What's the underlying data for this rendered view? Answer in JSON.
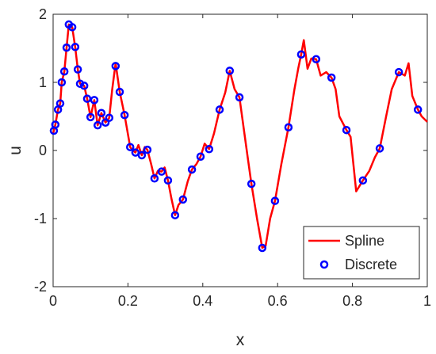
{
  "chart_data": {
    "type": "line",
    "xlabel": "x",
    "ylabel": "u",
    "xlim": [
      0,
      1
    ],
    "ylim": [
      -2,
      2
    ],
    "xticks": [
      0,
      0.2,
      0.4,
      0.6,
      0.8,
      1
    ],
    "yticks": [
      -2,
      -1,
      0,
      1,
      2
    ],
    "legend": "southeast",
    "series": [
      {
        "name": "Spline",
        "color": "#ff0000",
        "style": "line",
        "x": [
          0,
          0.002,
          0.006,
          0.013,
          0.019,
          0.023,
          0.03,
          0.036,
          0.042,
          0.051,
          0.059,
          0.066,
          0.072,
          0.083,
          0.091,
          0.1,
          0.11,
          0.119,
          0.129,
          0.14,
          0.15,
          0.158,
          0.167,
          0.178,
          0.191,
          0.206,
          0.213,
          0.22,
          0.228,
          0.237,
          0.245,
          0.252,
          0.262,
          0.271,
          0.28,
          0.29,
          0.298,
          0.307,
          0.316,
          0.326,
          0.335,
          0.347,
          0.36,
          0.371,
          0.383,
          0.394,
          0.405,
          0.417,
          0.43,
          0.445,
          0.46,
          0.472,
          0.485,
          0.498,
          0.51,
          0.52,
          0.53,
          0.545,
          0.559,
          0.568,
          0.58,
          0.593,
          0.61,
          0.629,
          0.645,
          0.655,
          0.663,
          0.67,
          0.68,
          0.69,
          0.703,
          0.715,
          0.73,
          0.744,
          0.755,
          0.765,
          0.784,
          0.795,
          0.81,
          0.828,
          0.845,
          0.86,
          0.873,
          0.89,
          0.905,
          0.924,
          0.94,
          0.95,
          0.96,
          0.975,
          0.985,
          1.0
        ],
        "values": [
          0.25,
          0.29,
          0.38,
          0.6,
          0.69,
          1.0,
          1.16,
          1.51,
          1.85,
          1.81,
          1.52,
          1.19,
          0.98,
          0.95,
          0.76,
          0.49,
          0.74,
          0.37,
          0.55,
          0.41,
          0.48,
          0.9,
          1.28,
          0.86,
          0.52,
          0.05,
          0.0,
          -0.03,
          0.08,
          -0.07,
          0.05,
          0.01,
          -0.2,
          -0.41,
          -0.3,
          -0.31,
          -0.25,
          -0.44,
          -0.7,
          -0.95,
          -0.8,
          -0.72,
          -0.45,
          -0.28,
          -0.2,
          -0.09,
          0.1,
          0.02,
          0.25,
          0.6,
          0.85,
          1.17,
          0.9,
          0.78,
          0.3,
          -0.1,
          -0.49,
          -1.0,
          -1.43,
          -1.4,
          -1.0,
          -0.74,
          -0.2,
          0.34,
          0.9,
          1.2,
          1.41,
          1.62,
          1.2,
          1.35,
          1.34,
          1.1,
          1.15,
          1.07,
          0.9,
          0.5,
          0.3,
          0.2,
          -0.6,
          -0.44,
          -0.3,
          -0.1,
          0.03,
          0.5,
          0.9,
          1.15,
          1.1,
          1.28,
          0.8,
          0.6,
          0.5,
          0.42
        ]
      },
      {
        "name": "Discrete",
        "color": "#0000ff",
        "style": "marker",
        "x": [
          0.002,
          0.006,
          0.013,
          0.019,
          0.023,
          0.03,
          0.036,
          0.042,
          0.051,
          0.059,
          0.066,
          0.072,
          0.083,
          0.091,
          0.1,
          0.11,
          0.119,
          0.129,
          0.14,
          0.15,
          0.167,
          0.178,
          0.191,
          0.206,
          0.22,
          0.237,
          0.252,
          0.271,
          0.29,
          0.307,
          0.326,
          0.347,
          0.371,
          0.394,
          0.417,
          0.445,
          0.472,
          0.498,
          0.53,
          0.559,
          0.593,
          0.629,
          0.663,
          0.703,
          0.744,
          0.784,
          0.828,
          0.873,
          0.924,
          0.975
        ],
        "values": [
          0.29,
          0.38,
          0.6,
          0.69,
          1.0,
          1.16,
          1.51,
          1.85,
          1.81,
          1.52,
          1.19,
          0.98,
          0.95,
          0.76,
          0.49,
          0.74,
          0.37,
          0.55,
          0.41,
          0.48,
          1.24,
          0.86,
          0.52,
          0.05,
          -0.03,
          -0.07,
          0.01,
          -0.41,
          -0.31,
          -0.44,
          -0.95,
          -0.72,
          -0.28,
          -0.09,
          0.02,
          0.6,
          1.17,
          0.78,
          -0.49,
          -1.43,
          -0.74,
          0.34,
          1.41,
          1.34,
          1.07,
          0.3,
          -0.44,
          0.03,
          1.15,
          0.6
        ]
      }
    ]
  }
}
